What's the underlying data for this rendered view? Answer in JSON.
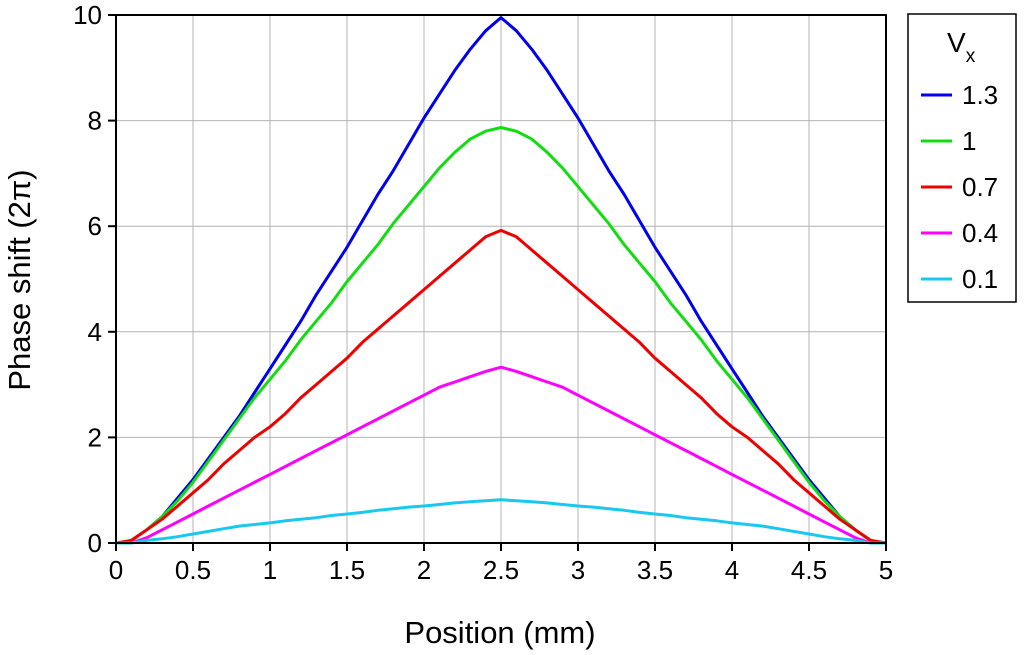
{
  "chart_data": {
    "type": "line",
    "xlabel": "Position (mm)",
    "ylabel": "Phase shift (2π)",
    "xlim": [
      0,
      5
    ],
    "ylim": [
      0,
      10
    ],
    "xticks": [
      "0",
      "0.5",
      "1",
      "1.5",
      "2",
      "2.5",
      "3",
      "3.5",
      "4",
      "4.5",
      "5"
    ],
    "yticks": [
      "0",
      "2",
      "4",
      "6",
      "8",
      "10"
    ],
    "grid": true,
    "legend": {
      "title_main": "V",
      "title_sub": "x",
      "position": "top-right, outside plot"
    },
    "series": [
      {
        "name": "1.3",
        "color": "#0000ee",
        "x": [
          0,
          0.05,
          0.1,
          0.2,
          0.3,
          0.4,
          0.5,
          0.6,
          0.7,
          0.8,
          0.9,
          1.0,
          1.1,
          1.2,
          1.3,
          1.4,
          1.5,
          1.6,
          1.7,
          1.8,
          1.9,
          2.0,
          2.1,
          2.2,
          2.3,
          2.4,
          2.5,
          2.6,
          2.7,
          2.8,
          2.9,
          3.0,
          3.1,
          3.2,
          3.3,
          3.4,
          3.5,
          3.6,
          3.7,
          3.8,
          3.9,
          4.0,
          4.1,
          4.2,
          4.3,
          4.4,
          4.5,
          4.6,
          4.7,
          4.8,
          4.9,
          4.95,
          5.0
        ],
        "y": [
          0,
          0,
          0.05,
          0.25,
          0.5,
          0.85,
          1.2,
          1.6,
          2.0,
          2.4,
          2.85,
          3.3,
          3.75,
          4.2,
          4.7,
          5.15,
          5.6,
          6.1,
          6.6,
          7.05,
          7.55,
          8.05,
          8.5,
          8.95,
          9.35,
          9.7,
          9.95,
          9.7,
          9.35,
          8.95,
          8.5,
          8.05,
          7.55,
          7.05,
          6.6,
          6.1,
          5.6,
          5.15,
          4.7,
          4.2,
          3.75,
          3.3,
          2.85,
          2.4,
          2.0,
          1.6,
          1.2,
          0.85,
          0.5,
          0.25,
          0.05,
          0,
          0
        ]
      },
      {
        "name": "1",
        "color": "#11dd11",
        "x": [
          0,
          0.05,
          0.1,
          0.2,
          0.3,
          0.4,
          0.5,
          0.6,
          0.7,
          0.8,
          0.9,
          1.0,
          1.1,
          1.2,
          1.3,
          1.4,
          1.5,
          1.6,
          1.7,
          1.8,
          1.9,
          2.0,
          2.1,
          2.2,
          2.3,
          2.4,
          2.5,
          2.6,
          2.7,
          2.8,
          2.9,
          3.0,
          3.1,
          3.2,
          3.3,
          3.4,
          3.5,
          3.6,
          3.7,
          3.8,
          3.9,
          4.0,
          4.1,
          4.2,
          4.3,
          4.4,
          4.5,
          4.6,
          4.7,
          4.8,
          4.9,
          4.95,
          5.0
        ],
        "y": [
          0,
          0,
          0.05,
          0.25,
          0.5,
          0.8,
          1.15,
          1.55,
          1.95,
          2.35,
          2.75,
          3.1,
          3.45,
          3.85,
          4.2,
          4.55,
          4.95,
          5.3,
          5.65,
          6.05,
          6.4,
          6.75,
          7.1,
          7.4,
          7.65,
          7.8,
          7.87,
          7.8,
          7.65,
          7.4,
          7.1,
          6.75,
          6.4,
          6.05,
          5.65,
          5.3,
          4.95,
          4.55,
          4.2,
          3.85,
          3.45,
          3.1,
          2.75,
          2.35,
          1.95,
          1.55,
          1.15,
          0.8,
          0.5,
          0.25,
          0.05,
          0,
          0
        ]
      },
      {
        "name": "0.7",
        "color": "#ee0000",
        "x": [
          0,
          0.1,
          0.2,
          0.3,
          0.4,
          0.5,
          0.6,
          0.7,
          0.8,
          0.9,
          1.0,
          1.1,
          1.2,
          1.3,
          1.4,
          1.5,
          1.6,
          1.7,
          1.8,
          1.9,
          2.0,
          2.1,
          2.2,
          2.3,
          2.4,
          2.5,
          2.6,
          2.7,
          2.8,
          2.9,
          3.0,
          3.1,
          3.2,
          3.3,
          3.4,
          3.5,
          3.6,
          3.7,
          3.8,
          3.9,
          4.0,
          4.1,
          4.2,
          4.3,
          4.4,
          4.5,
          4.6,
          4.7,
          4.8,
          4.9,
          5.0
        ],
        "y": [
          0,
          0.05,
          0.25,
          0.45,
          0.7,
          0.95,
          1.2,
          1.5,
          1.75,
          2.0,
          2.2,
          2.45,
          2.75,
          3.0,
          3.25,
          3.5,
          3.8,
          4.05,
          4.3,
          4.55,
          4.8,
          5.05,
          5.3,
          5.55,
          5.8,
          5.92,
          5.8,
          5.55,
          5.3,
          5.05,
          4.8,
          4.55,
          4.3,
          4.05,
          3.8,
          3.5,
          3.25,
          3.0,
          2.75,
          2.45,
          2.2,
          2.0,
          1.75,
          1.5,
          1.2,
          0.95,
          0.7,
          0.45,
          0.25,
          0.05,
          0
        ]
      },
      {
        "name": "0.4",
        "color": "#ff00ff",
        "x": [
          0,
          0.1,
          0.2,
          0.3,
          0.4,
          0.5,
          0.6,
          0.7,
          0.8,
          0.9,
          1.0,
          1.1,
          1.2,
          1.3,
          1.4,
          1.5,
          1.6,
          1.7,
          1.8,
          1.9,
          2.0,
          2.1,
          2.2,
          2.3,
          2.4,
          2.5,
          2.6,
          2.7,
          2.8,
          2.9,
          3.0,
          3.1,
          3.2,
          3.3,
          3.4,
          3.5,
          3.6,
          3.7,
          3.8,
          3.9,
          4.0,
          4.1,
          4.2,
          4.3,
          4.4,
          4.5,
          4.6,
          4.7,
          4.8,
          4.9,
          5.0
        ],
        "y": [
          0,
          0,
          0.1,
          0.25,
          0.4,
          0.55,
          0.7,
          0.85,
          1.0,
          1.15,
          1.3,
          1.45,
          1.6,
          1.75,
          1.9,
          2.05,
          2.2,
          2.35,
          2.5,
          2.65,
          2.8,
          2.95,
          3.05,
          3.15,
          3.25,
          3.33,
          3.25,
          3.15,
          3.05,
          2.95,
          2.8,
          2.65,
          2.5,
          2.35,
          2.2,
          2.05,
          1.9,
          1.75,
          1.6,
          1.45,
          1.3,
          1.15,
          1.0,
          0.85,
          0.7,
          0.55,
          0.4,
          0.25,
          0.1,
          0,
          0
        ]
      },
      {
        "name": "0.1",
        "color": "#19c8f0",
        "x": [
          0,
          0.1,
          0.2,
          0.3,
          0.4,
          0.5,
          0.6,
          0.7,
          0.8,
          0.9,
          1.0,
          1.1,
          1.2,
          1.3,
          1.4,
          1.5,
          1.6,
          1.7,
          1.8,
          1.9,
          2.0,
          2.1,
          2.2,
          2.3,
          2.4,
          2.5,
          2.6,
          2.7,
          2.8,
          2.9,
          3.0,
          3.1,
          3.2,
          3.3,
          3.4,
          3.5,
          3.6,
          3.7,
          3.8,
          3.9,
          4.0,
          4.1,
          4.2,
          4.3,
          4.4,
          4.5,
          4.6,
          4.7,
          4.8,
          4.9,
          5.0
        ],
        "y": [
          0,
          0,
          0.05,
          0.08,
          0.12,
          0.17,
          0.22,
          0.27,
          0.32,
          0.35,
          0.38,
          0.42,
          0.45,
          0.48,
          0.52,
          0.55,
          0.58,
          0.62,
          0.65,
          0.68,
          0.7,
          0.73,
          0.76,
          0.78,
          0.8,
          0.82,
          0.8,
          0.78,
          0.76,
          0.73,
          0.7,
          0.68,
          0.65,
          0.62,
          0.58,
          0.55,
          0.52,
          0.48,
          0.45,
          0.42,
          0.38,
          0.35,
          0.32,
          0.27,
          0.22,
          0.17,
          0.12,
          0.08,
          0.05,
          0,
          0
        ]
      }
    ]
  }
}
